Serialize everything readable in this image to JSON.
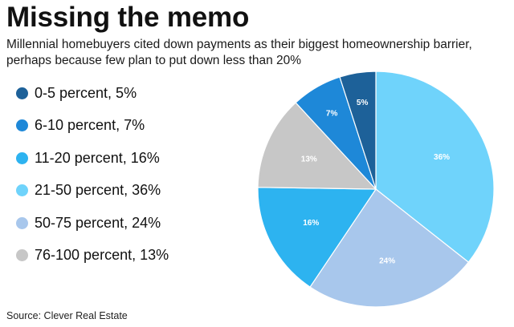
{
  "title": "Missing the memo",
  "subtitle": "Millennial homebuyers cited down payments as their biggest homeownership barrier, perhaps because few plan to put down less than 20%",
  "source": "Source: Clever Real Estate",
  "legend": [
    {
      "text": "0-5 percent, 5%",
      "color": "#1d6199"
    },
    {
      "text": "6-10 percent, 7%",
      "color": "#1e88d8"
    },
    {
      "text": "11-20 percent, 16%",
      "color": "#2db3f0"
    },
    {
      "text": "21-50 percent, 36%",
      "color": "#6fd3fb"
    },
    {
      "text": "50-75 percent, 24%",
      "color": "#a8c7ec"
    },
    {
      "text": "76-100 percent, 13%",
      "color": "#c7c7c7"
    }
  ],
  "chart_data": {
    "type": "pie",
    "title": "",
    "start_angle_deg": 0,
    "direction": "clockwise",
    "slices": [
      {
        "name": "21-50 percent",
        "value": 36,
        "label": "36%",
        "color": "#6fd3fb"
      },
      {
        "name": "50-75 percent",
        "value": 24,
        "label": "24%",
        "color": "#a8c7ec"
      },
      {
        "name": "11-20 percent",
        "value": 16,
        "label": "16%",
        "color": "#2db3f0"
      },
      {
        "name": "76-100 percent",
        "value": 13,
        "label": "13%",
        "color": "#c7c7c7"
      },
      {
        "name": "6-10 percent",
        "value": 7,
        "label": "7%",
        "color": "#1e88d8"
      },
      {
        "name": "0-5 percent",
        "value": 5,
        "label": "5%",
        "color": "#1d6199"
      }
    ]
  }
}
